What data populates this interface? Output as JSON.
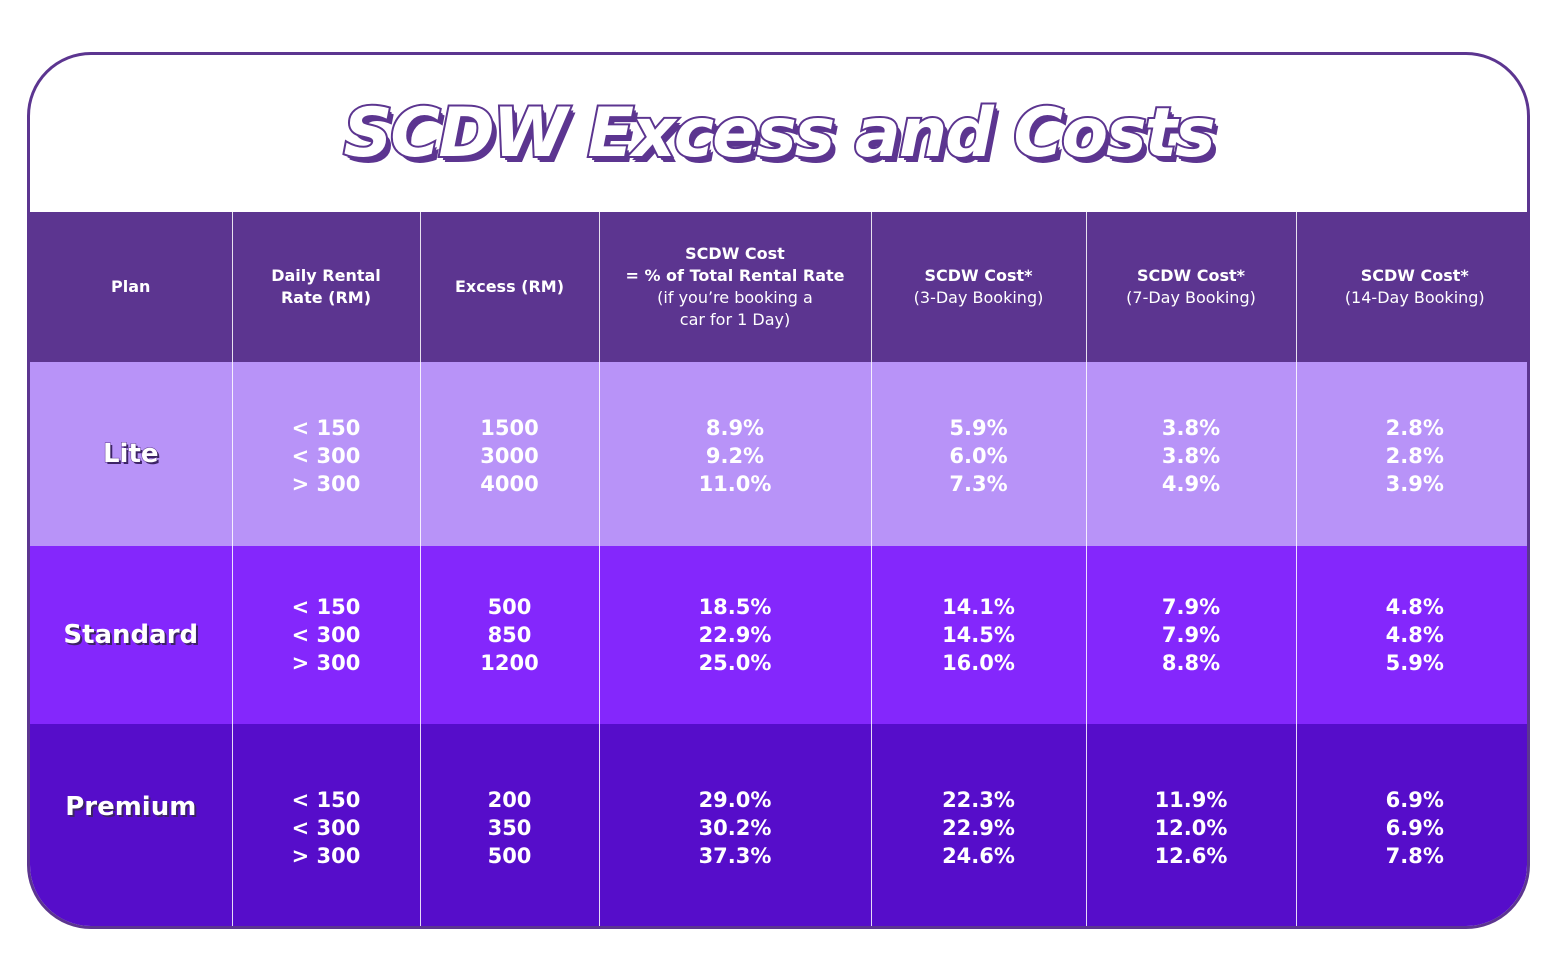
{
  "title": "SCDW Excess and Costs",
  "colors": {
    "border": "#5c3590",
    "header_bg": "#5c3590",
    "lite_bg": "#b893f8",
    "standard_bg": "#8427fc",
    "premium_bg": "#560dca"
  },
  "headers": {
    "plan": "Plan",
    "daily_rate_1": "Daily Rental",
    "daily_rate_2": "Rate (RM)",
    "excess": "Excess (RM)",
    "one_day_1": "SCDW Cost",
    "one_day_2": "= % of Total Rental Rate",
    "one_day_3": "(if you’re booking a",
    "one_day_4": "car for 1 Day)",
    "three_day_1": "SCDW Cost*",
    "three_day_2": "(3-Day Booking)",
    "seven_day_1": "SCDW Cost*",
    "seven_day_2": "(7-Day Booking)",
    "fourteen_day_1": "SCDW Cost*",
    "fourteen_day_2": "(14-Day Booking)"
  },
  "rows": [
    {
      "plan": "Lite",
      "rates": [
        "< 150",
        "< 300",
        "> 300"
      ],
      "excess": [
        "1500",
        "3000",
        "4000"
      ],
      "one_day": [
        "8.9%",
        "9.2%",
        "11.0%"
      ],
      "three_day": [
        "5.9%",
        "6.0%",
        "7.3%"
      ],
      "seven_day": [
        "3.8%",
        "3.8%",
        "4.9%"
      ],
      "fourteen_day": [
        "2.8%",
        "2.8%",
        "3.9%"
      ]
    },
    {
      "plan": "Standard",
      "rates": [
        "< 150",
        "< 300",
        "> 300"
      ],
      "excess": [
        "500",
        "850",
        "1200"
      ],
      "one_day": [
        "18.5%",
        "22.9%",
        "25.0%"
      ],
      "three_day": [
        "14.1%",
        "14.5%",
        "16.0%"
      ],
      "seven_day": [
        "7.9%",
        "7.9%",
        "8.8%"
      ],
      "fourteen_day": [
        "4.8%",
        "4.8%",
        "5.9%"
      ]
    },
    {
      "plan": "Premium",
      "rates": [
        "< 150",
        "< 300",
        "> 300"
      ],
      "excess": [
        "200",
        "350",
        "500"
      ],
      "one_day": [
        "29.0%",
        "30.2%",
        "37.3%"
      ],
      "three_day": [
        "22.3%",
        "22.9%",
        "24.6%"
      ],
      "seven_day": [
        "11.9%",
        "12.0%",
        "12.6%"
      ],
      "fourteen_day": [
        "6.9%",
        "6.9%",
        "7.8%"
      ]
    }
  ]
}
